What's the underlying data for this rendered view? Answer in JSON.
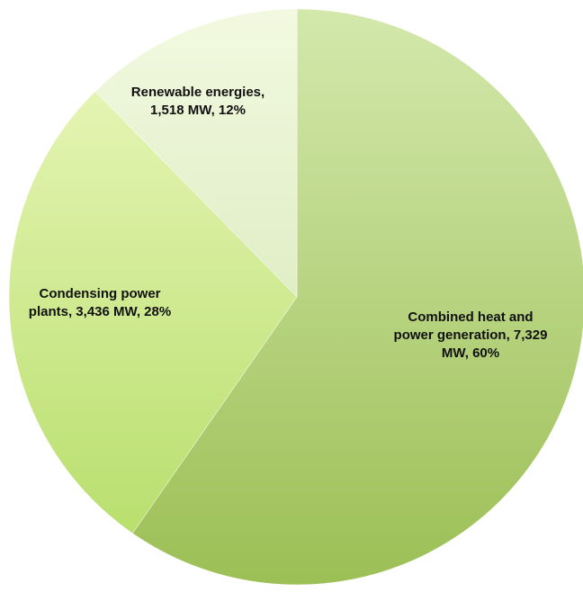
{
  "chart_data": {
    "type": "pie",
    "title": "",
    "slices": [
      {
        "name": "Combined heat and power generation",
        "value": 7329,
        "unit": "MW",
        "percent": 60,
        "label_lines": [
          "Combined heat and",
          "power generation, 7,329",
          "MW, 60%"
        ],
        "color_light": "#d3e8ac",
        "color_dark": "#9cbf55"
      },
      {
        "name": "Condensing power plants",
        "value": 3436,
        "unit": "MW",
        "percent": 28,
        "label_lines": [
          "Condensing power",
          "plants, 3,436 MW, 28%"
        ],
        "color_light": "#e4f4b2",
        "color_dark": "#b9df6e"
      },
      {
        "name": "Renewable energies",
        "value": 1518,
        "unit": "MW",
        "percent": 12,
        "label_lines": [
          "Renewable energies,",
          "1,518 MW, 12%"
        ],
        "color_light": "#f2f9e0",
        "color_dark": "#e0eec6"
      }
    ],
    "start_angle_deg": 0,
    "direction": "clockwise",
    "legend": "none"
  }
}
